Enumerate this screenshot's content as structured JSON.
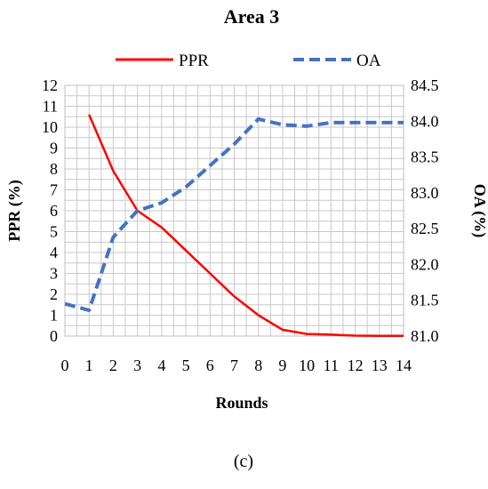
{
  "chart_data": {
    "type": "line",
    "title": "Area 3",
    "xlabel": "Rounds",
    "ylabel": "PPR (%)",
    "y2label": "OA (%)",
    "x": [
      0,
      1,
      2,
      3,
      4,
      5,
      6,
      7,
      8,
      9,
      10,
      11,
      12,
      13,
      14
    ],
    "xlim": [
      0,
      14
    ],
    "ylim": [
      0,
      12
    ],
    "y2lim": [
      81.0,
      84.5
    ],
    "yticks": [
      "0",
      "1",
      "2",
      "3",
      "4",
      "5",
      "6",
      "7",
      "8",
      "9",
      "10",
      "11",
      "12"
    ],
    "y2ticks": [
      "81.0",
      "81.5",
      "82.0",
      "82.5",
      "83.0",
      "83.5",
      "84.0",
      "84.5"
    ],
    "xticks": [
      "0",
      "1",
      "2",
      "3",
      "4",
      "5",
      "6",
      "7",
      "8",
      "9",
      "10",
      "11",
      "12",
      "13",
      "14"
    ],
    "grid": true,
    "legend_position": "top",
    "series": [
      {
        "name": "PPR",
        "axis": "left",
        "style": "solid",
        "color": "#ff0000",
        "x": [
          1,
          2,
          3,
          4,
          5,
          6,
          7,
          8,
          9,
          10,
          11,
          12,
          13,
          14
        ],
        "values": [
          10.6,
          7.9,
          6.0,
          5.2,
          4.1,
          3.0,
          1.9,
          1.0,
          0.3,
          0.1,
          0.07,
          0.02,
          0.01,
          0.01
        ]
      },
      {
        "name": "OA",
        "axis": "right",
        "style": "dashed",
        "color": "#4472c4",
        "x": [
          0,
          1,
          2,
          3,
          4,
          5,
          6,
          7,
          8,
          9,
          10,
          11,
          12,
          13,
          14
        ],
        "values": [
          81.45,
          81.36,
          82.38,
          82.75,
          82.86,
          83.08,
          83.38,
          83.68,
          84.03,
          83.95,
          83.93,
          83.98,
          83.98,
          83.98,
          83.98
        ]
      }
    ]
  },
  "caption": "(c)"
}
